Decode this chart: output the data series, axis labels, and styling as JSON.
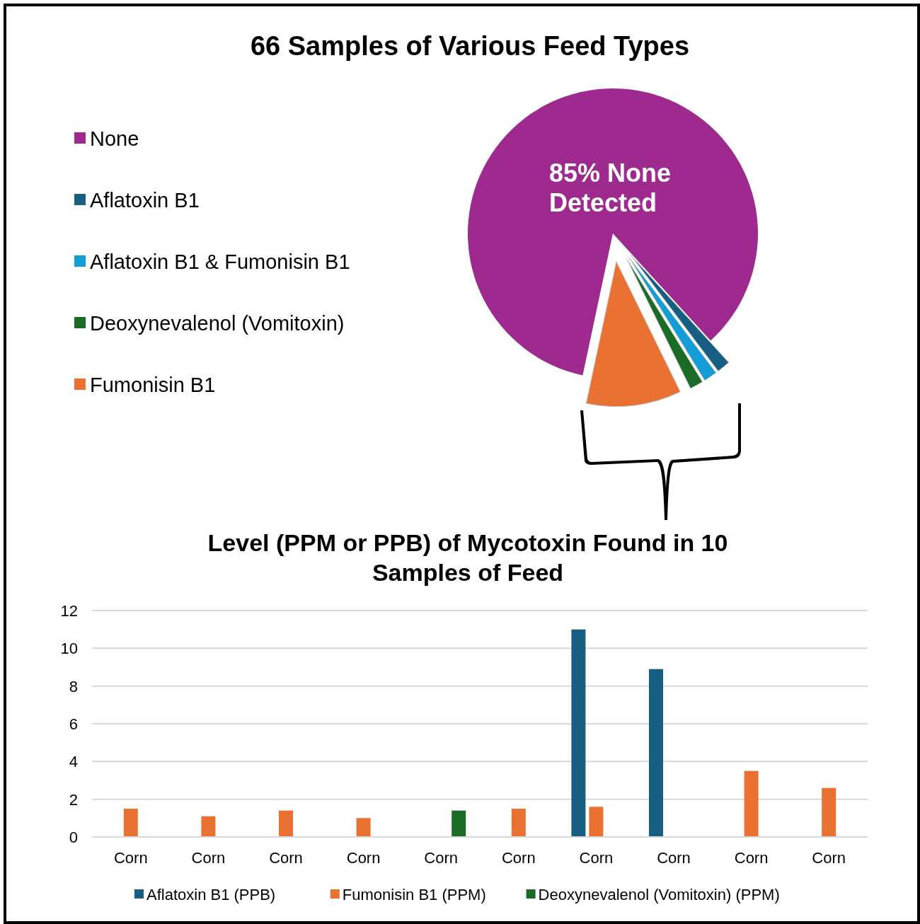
{
  "chart_data": [
    {
      "type": "pie",
      "title": "66 Samples of Various Feed Types",
      "categories": [
        "None",
        "Aflatoxin B1",
        "Aflatoxin B1 & Fumonisin B1",
        "Deoxynevalenol (Vomitoxin)",
        "Fumonisin B1"
      ],
      "values": [
        84.9,
        1.5,
        1.5,
        1.5,
        10.6
      ],
      "colors": [
        "#9e2a8f",
        "#175f82",
        "#139dd6",
        "#1a6b26",
        "#e97132"
      ],
      "legend": "left",
      "annotations": [
        "85% None Detected"
      ]
    },
    {
      "type": "bar",
      "title": "Level (PPM or PPB) of Mycotoxin Found in 10 Samples of Feed",
      "categories": [
        "Corn",
        "Corn",
        "Corn",
        "Corn",
        "Corn",
        "Corn",
        "Corn",
        "Corn",
        "Corn",
        "Corn"
      ],
      "series": [
        {
          "name": "Aflatoxin B1 (PPB)",
          "color": "#175f82",
          "values": [
            null,
            null,
            null,
            null,
            null,
            null,
            11,
            8.9,
            null,
            null
          ]
        },
        {
          "name": "Fumonisin B1 (PPM)",
          "color": "#e97132",
          "values": [
            1.5,
            1.1,
            1.4,
            1.0,
            null,
            1.5,
            1.6,
            null,
            3.5,
            2.6
          ]
        },
        {
          "name": "Deoxynevalenol (Vomitoxin) (PPM)",
          "color": "#1a6b26",
          "values": [
            null,
            null,
            null,
            null,
            1.4,
            null,
            null,
            null,
            null,
            null
          ]
        }
      ],
      "ylim": [
        0,
        12
      ],
      "yticks": [
        0,
        2,
        4,
        6,
        8,
        10,
        12
      ],
      "grid": "y",
      "legend": "bottom"
    }
  ]
}
